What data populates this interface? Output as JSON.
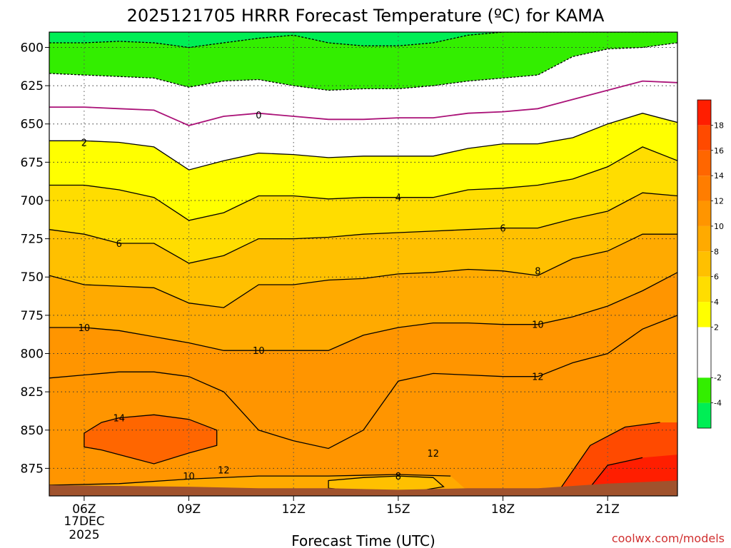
{
  "chart_data": {
    "type": "heatmap",
    "title": "2025121705 HRRR Forecast Temperature (ºC) for KAMA",
    "xlabel": "Forecast Time (UTC)",
    "ylabel": "",
    "date_label": [
      "17DEC",
      "2025"
    ],
    "x_ticks": [
      {
        "hour": 6,
        "label": "06Z"
      },
      {
        "hour": 9,
        "label": "09Z"
      },
      {
        "hour": 12,
        "label": "12Z"
      },
      {
        "hour": 15,
        "label": "15Z"
      },
      {
        "hour": 18,
        "label": "18Z"
      },
      {
        "hour": 21,
        "label": "21Z"
      }
    ],
    "xlim": [
      5,
      23
    ],
    "y_ticks": [
      600,
      625,
      650,
      675,
      700,
      725,
      750,
      775,
      800,
      825,
      850,
      875
    ],
    "ylim": [
      590,
      893
    ],
    "hours": [
      5,
      6,
      7,
      8,
      9,
      10,
      11,
      12,
      13,
      14,
      15,
      16,
      17,
      18,
      19,
      20,
      21,
      22,
      23
    ],
    "contours": [
      {
        "value": -4,
        "pressure": [
          597,
          597,
          596,
          597,
          600,
          597,
          594,
          592,
          597,
          599,
          599,
          597,
          592,
          590,
          590,
          590,
          590,
          590,
          590
        ]
      },
      {
        "value": -2,
        "pressure": [
          617,
          618,
          619,
          620,
          626,
          622,
          621,
          625,
          628,
          627,
          627,
          625,
          622,
          620,
          618,
          606,
          601,
          600,
          597
        ]
      },
      {
        "value": 0,
        "pressure": [
          639,
          639,
          640,
          641,
          651,
          645,
          643,
          645,
          647,
          647,
          646,
          646,
          643,
          642,
          640,
          634,
          628,
          622,
          623
        ]
      },
      {
        "value": 2,
        "pressure": [
          661,
          661,
          662,
          665,
          680,
          674,
          669,
          670,
          672,
          671,
          671,
          671,
          666,
          663,
          663,
          659,
          650,
          643,
          649
        ]
      },
      {
        "value": 4,
        "pressure": [
          690,
          690,
          693,
          698,
          713,
          708,
          697,
          697,
          699,
          698,
          698,
          698,
          693,
          692,
          690,
          686,
          678,
          665,
          674
        ]
      },
      {
        "value": 6,
        "pressure": [
          719,
          722,
          728,
          728,
          741,
          736,
          725,
          725,
          724,
          722,
          721,
          720,
          719,
          718,
          718,
          712,
          707,
          695,
          697
        ]
      },
      {
        "value": 8,
        "pressure": [
          749,
          755,
          756,
          757,
          767,
          770,
          755,
          755,
          752,
          751,
          748,
          747,
          745,
          746,
          749,
          738,
          733,
          722,
          722
        ]
      },
      {
        "value": 10,
        "pressure": [
          783,
          783,
          785,
          789,
          793,
          798,
          798,
          798,
          798,
          788,
          783,
          780,
          780,
          781,
          781,
          776,
          769,
          759,
          747
        ]
      },
      {
        "value": 12,
        "pressure": [
          816,
          814,
          812,
          812,
          815,
          825,
          850,
          857,
          862,
          850,
          818,
          813,
          814,
          815,
          815,
          806,
          800,
          784,
          775
        ]
      }
    ],
    "warm_core_14": [
      {
        "hour": 6.0,
        "pressure": 852
      },
      {
        "hour": 6.5,
        "pressure": 845
      },
      {
        "hour": 7.0,
        "pressure": 842
      },
      {
        "hour": 8.0,
        "pressure": 840
      },
      {
        "hour": 9.0,
        "pressure": 843
      },
      {
        "hour": 9.8,
        "pressure": 850
      },
      {
        "hour": 9.8,
        "pressure": 860
      },
      {
        "hour": 9.0,
        "pressure": 865
      },
      {
        "hour": 8.0,
        "pressure": 872
      },
      {
        "hour": 7.0,
        "pressure": 866
      },
      {
        "hour": 6.5,
        "pressure": 863
      },
      {
        "hour": 6.0,
        "pressure": 861
      }
    ],
    "inner_10": [
      {
        "hour": 5.0,
        "pressure": 886
      },
      {
        "hour": 7.0,
        "pressure": 885
      },
      {
        "hour": 9.0,
        "pressure": 882
      },
      {
        "hour": 11.0,
        "pressure": 880
      },
      {
        "hour": 13.0,
        "pressure": 880
      },
      {
        "hour": 15.0,
        "pressure": 879
      },
      {
        "hour": 16.5,
        "pressure": 880
      },
      {
        "hour": 17.0,
        "pressure": 890
      },
      {
        "hour": 15.0,
        "pressure": 891
      },
      {
        "hour": 11.0,
        "pressure": 891
      },
      {
        "hour": 7.0,
        "pressure": 891
      },
      {
        "hour": 5.0,
        "pressure": 891
      }
    ],
    "inner_8": [
      {
        "hour": 13.0,
        "pressure": 883
      },
      {
        "hour": 14.0,
        "pressure": 881
      },
      {
        "hour": 15.0,
        "pressure": 880
      },
      {
        "hour": 16.0,
        "pressure": 881
      },
      {
        "hour": 16.3,
        "pressure": 887
      },
      {
        "hour": 15.5,
        "pressure": 890
      },
      {
        "hour": 14.0,
        "pressure": 890
      },
      {
        "hour": 13.0,
        "pressure": 888
      }
    ],
    "hot_16": [
      {
        "hour": 19.5,
        "pressure": 893
      },
      {
        "hour": 20.5,
        "pressure": 860
      },
      {
        "hour": 21.5,
        "pressure": 848
      },
      {
        "hour": 22.5,
        "pressure": 845
      },
      {
        "hour": 23.0,
        "pressure": 845
      },
      {
        "hour": 23.0,
        "pressure": 893
      }
    ],
    "hot_18": [
      {
        "hour": 20.3,
        "pressure": 893
      },
      {
        "hour": 21.0,
        "pressure": 873
      },
      {
        "hour": 22.0,
        "pressure": 868
      },
      {
        "hour": 23.0,
        "pressure": 866
      },
      {
        "hour": 23.0,
        "pressure": 893
      }
    ],
    "hot_20": [
      {
        "hour": 21.0,
        "pressure": 893
      },
      {
        "hour": 21.5,
        "pressure": 886
      },
      {
        "hour": 22.5,
        "pressure": 884
      },
      {
        "hour": 23.0,
        "pressure": 883
      },
      {
        "hour": 23.0,
        "pressure": 893
      }
    ],
    "ground": [
      {
        "hour": 5.0,
        "pressure": 886
      },
      {
        "hour": 9.0,
        "pressure": 887
      },
      {
        "hour": 11.0,
        "pressure": 888
      },
      {
        "hour": 13.0,
        "pressure": 888
      },
      {
        "hour": 15.0,
        "pressure": 889
      },
      {
        "hour": 17.0,
        "pressure": 888
      },
      {
        "hour": 19.0,
        "pressure": 888
      },
      {
        "hour": 21.0,
        "pressure": 885
      },
      {
        "hour": 23.0,
        "pressure": 883
      }
    ],
    "contour_labels": [
      {
        "text": "0",
        "hour": 11.0,
        "pressure": 644
      },
      {
        "text": "2",
        "hour": 6.0,
        "pressure": 662
      },
      {
        "text": "4",
        "hour": 15.0,
        "pressure": 698
      },
      {
        "text": "6",
        "hour": 7.0,
        "pressure": 728
      },
      {
        "text": "6",
        "hour": 18.0,
        "pressure": 718
      },
      {
        "text": "8",
        "hour": 19.0,
        "pressure": 746
      },
      {
        "text": "10",
        "hour": 6.0,
        "pressure": 783
      },
      {
        "text": "10",
        "hour": 11.0,
        "pressure": 798
      },
      {
        "text": "10",
        "hour": 19.0,
        "pressure": 781
      },
      {
        "text": "12",
        "hour": 19.0,
        "pressure": 815
      },
      {
        "text": "14",
        "hour": 7.0,
        "pressure": 842
      },
      {
        "text": "12",
        "hour": 16.0,
        "pressure": 865
      },
      {
        "text": "12",
        "hour": 10.0,
        "pressure": 876
      },
      {
        "text": "10",
        "hour": 9.0,
        "pressure": 880
      },
      {
        "text": "8",
        "hour": 15.0,
        "pressure": 880
      }
    ],
    "colorbar": {
      "levels": [
        -6,
        -4,
        -2,
        0,
        2,
        4,
        6,
        8,
        10,
        12,
        14,
        16,
        18,
        20
      ],
      "labels": [
        "-4",
        "-2",
        "2",
        "4",
        "6",
        "8",
        "10",
        "12",
        "14",
        "16",
        "18"
      ],
      "colors": [
        "#00ee55",
        "#33ee00",
        "#ffffff",
        "#ffffff",
        "#ffff00",
        "#ffdd00",
        "#ffc000",
        "#ffaa00",
        "#ff9500",
        "#ff7d00",
        "#ff6600",
        "#ff4a00",
        "#ff1e00"
      ]
    },
    "grid": true,
    "colors": {
      "ground": "#a0522d",
      "zero_line": "#aa1177",
      "contour": "#000000",
      "frame": "#000000"
    }
  },
  "watermark": "coolwx.com/models"
}
